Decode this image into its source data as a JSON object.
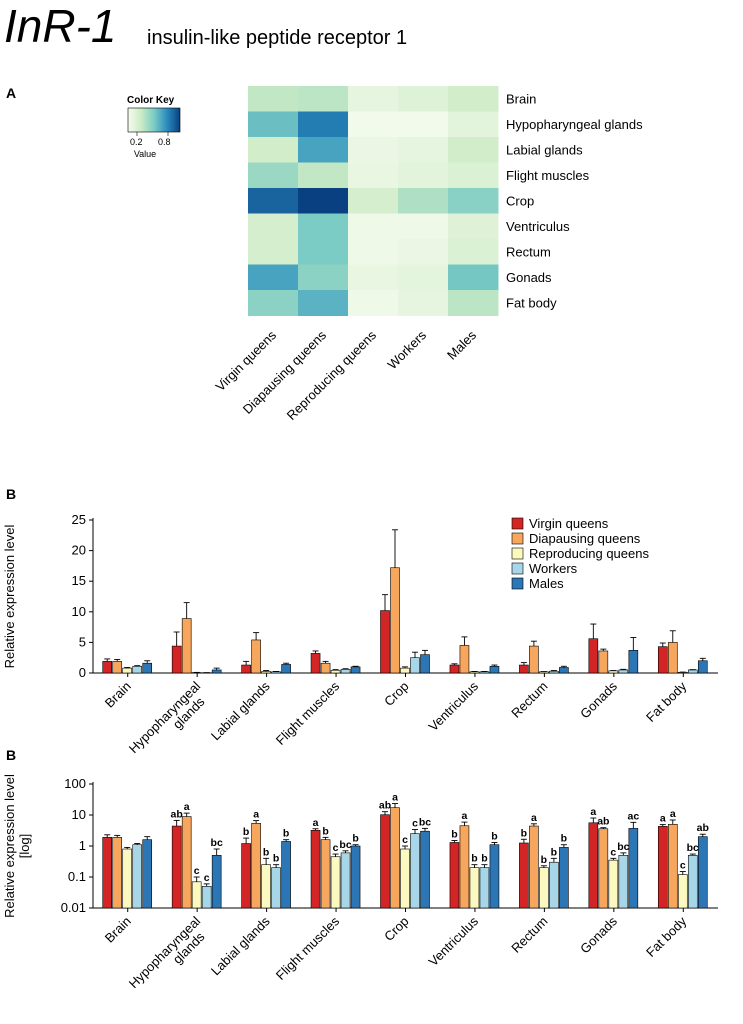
{
  "header": {
    "gene": "InR-1",
    "description": "insulin-like peptide receptor 1"
  },
  "panel_labels": {
    "a": "A",
    "b1": "B",
    "b2": "B"
  },
  "colors": {
    "Virgin queens": "#d42526",
    "Diapausing queens": "#f7a65e",
    "Reproducing queens": "#fbf8c0",
    "Workers": "#a6d6e8",
    "Males": "#2c76b6"
  },
  "chart_data": [
    {
      "type": "heatmap",
      "title": "",
      "color_key": {
        "title": "Color Key",
        "ticks": [
          "0.2",
          "0.8"
        ],
        "label": "Value",
        "range": [
          0,
          1
        ]
      },
      "columns": [
        "Virgin queens",
        "Diapausing queens",
        "Reproducing queens",
        "Workers",
        "Males"
      ],
      "rows": [
        "Brain",
        "Hypopharyngeal glands",
        "Labial glands",
        "Flight muscles",
        "Crop",
        "Ventriculus",
        "Rectum",
        "Gonads",
        "Fat body"
      ],
      "values": [
        [
          0.28,
          0.3,
          0.1,
          0.15,
          0.22
        ],
        [
          0.55,
          0.8,
          0.03,
          0.03,
          0.12
        ],
        [
          0.22,
          0.66,
          0.07,
          0.1,
          0.22
        ],
        [
          0.4,
          0.28,
          0.08,
          0.12,
          0.16
        ],
        [
          0.88,
          1.0,
          0.2,
          0.34,
          0.46
        ],
        [
          0.2,
          0.5,
          0.05,
          0.05,
          0.14
        ],
        [
          0.2,
          0.5,
          0.05,
          0.07,
          0.16
        ],
        [
          0.66,
          0.45,
          0.08,
          0.11,
          0.52
        ],
        [
          0.45,
          0.6,
          0.05,
          0.1,
          0.3
        ]
      ]
    },
    {
      "type": "bar",
      "ylabel": "Relative expression level",
      "xlabel": "",
      "ylim": [
        0,
        25
      ],
      "yticks": [
        0,
        5,
        10,
        15,
        20,
        25
      ],
      "categories": [
        "Brain",
        "Hypopharyngeal glands",
        "Labial glands",
        "Flight muscles",
        "Crop",
        "Ventriculus",
        "Rectum",
        "Gonads",
        "Fat body"
      ],
      "category_labels": [
        [
          "Brain"
        ],
        [
          "Hypopharyngeal",
          "glands"
        ],
        [
          "Labial glands"
        ],
        [
          "Flight muscles"
        ],
        [
          "Crop"
        ],
        [
          "Ventriculus"
        ],
        [
          "Rectum"
        ],
        [
          "Gonads"
        ],
        [
          "Fat body"
        ]
      ],
      "legend_position": "top-right",
      "series": [
        {
          "name": "Virgin queens",
          "values": [
            1.9,
            4.4,
            1.3,
            3.2,
            10.2,
            1.3,
            1.3,
            5.6,
            4.3
          ],
          "errors": [
            0.4,
            2.3,
            0.6,
            0.4,
            2.6,
            0.2,
            0.4,
            2.4,
            0.6
          ]
        },
        {
          "name": "Diapausing queens",
          "values": [
            1.9,
            8.9,
            5.4,
            1.6,
            17.2,
            4.5,
            4.4,
            3.6,
            5.0
          ],
          "errors": [
            0.3,
            2.6,
            1.2,
            0.3,
            6.2,
            1.4,
            0.8,
            0.3,
            1.9
          ]
        },
        {
          "name": "Reproducing queens",
          "values": [
            0.8,
            0.07,
            0.25,
            0.45,
            0.8,
            0.2,
            0.2,
            0.35,
            0.12
          ],
          "errors": [
            0.1,
            0.03,
            0.15,
            0.1,
            0.2,
            0.05,
            0.03,
            0.05,
            0.03
          ]
        },
        {
          "name": "Workers",
          "values": [
            1.1,
            0.05,
            0.2,
            0.6,
            2.5,
            0.2,
            0.3,
            0.5,
            0.5
          ],
          "errors": [
            0.1,
            0.01,
            0.05,
            0.1,
            0.9,
            0.05,
            0.1,
            0.1,
            0.05
          ]
        },
        {
          "name": "Males",
          "values": [
            1.6,
            0.5,
            1.4,
            1.0,
            3.0,
            1.1,
            0.9,
            3.7,
            2.0
          ],
          "errors": [
            0.4,
            0.3,
            0.2,
            0.1,
            0.7,
            0.2,
            0.2,
            2.1,
            0.4
          ]
        }
      ]
    },
    {
      "type": "bar",
      "scale": "log",
      "ylabel": "Relative expression level",
      "ylabel2": "[log]",
      "xlabel": "",
      "ylim": [
        0.01,
        100
      ],
      "yticks": [
        0.01,
        0.1,
        1,
        10,
        100
      ],
      "ytick_labels": [
        "0.01",
        "0.1",
        "1",
        "10",
        "100"
      ],
      "categories": [
        "Brain",
        "Hypopharyngeal glands",
        "Labial glands",
        "Flight muscles",
        "Crop",
        "Ventriculus",
        "Rectum",
        "Gonads",
        "Fat body"
      ],
      "category_labels": [
        [
          "Brain"
        ],
        [
          "Hypopharyngeal",
          "glands"
        ],
        [
          "Labial glands"
        ],
        [
          "Flight muscles"
        ],
        [
          "Crop"
        ],
        [
          "Ventriculus"
        ],
        [
          "Rectum"
        ],
        [
          "Gonads"
        ],
        [
          "Fat body"
        ]
      ],
      "series": [
        {
          "name": "Virgin queens",
          "values": [
            1.9,
            4.4,
            1.2,
            3.2,
            10.2,
            1.3,
            1.25,
            5.6,
            4.3
          ],
          "errors": [
            0.4,
            2.3,
            0.6,
            0.4,
            2.6,
            0.2,
            0.4,
            2.4,
            0.6
          ]
        },
        {
          "name": "Diapausing queens",
          "values": [
            1.9,
            8.9,
            5.4,
            1.6,
            17.2,
            4.5,
            4.4,
            3.6,
            5.0
          ],
          "errors": [
            0.3,
            2.6,
            1.2,
            0.3,
            6.2,
            1.4,
            0.8,
            0.3,
            1.9
          ]
        },
        {
          "name": "Reproducing queens",
          "values": [
            0.8,
            0.07,
            0.25,
            0.45,
            0.8,
            0.2,
            0.2,
            0.35,
            0.12
          ],
          "errors": [
            0.1,
            0.03,
            0.15,
            0.1,
            0.2,
            0.05,
            0.03,
            0.05,
            0.03
          ]
        },
        {
          "name": "Workers",
          "values": [
            1.1,
            0.05,
            0.2,
            0.6,
            2.5,
            0.2,
            0.3,
            0.5,
            0.5
          ],
          "errors": [
            0.1,
            0.01,
            0.05,
            0.1,
            0.9,
            0.05,
            0.1,
            0.1,
            0.05
          ]
        },
        {
          "name": "Males",
          "values": [
            1.6,
            0.5,
            1.4,
            1.0,
            3.0,
            1.1,
            0.9,
            3.7,
            2.0
          ],
          "errors": [
            0.4,
            0.3,
            0.2,
            0.1,
            0.7,
            0.2,
            0.2,
            2.1,
            0.4
          ]
        }
      ],
      "significance": [
        [
          "",
          "",
          "",
          "",
          ""
        ],
        [
          "ab",
          "a",
          "c",
          "c",
          "bc"
        ],
        [
          "b",
          "a",
          "b",
          "b",
          "b"
        ],
        [
          "a",
          "b",
          "c",
          "bc",
          "b"
        ],
        [
          "ab",
          "a",
          "c",
          "c",
          "bc"
        ],
        [
          "b",
          "a",
          "b",
          "b",
          "b"
        ],
        [
          "b",
          "a",
          "b",
          "b",
          "b"
        ],
        [
          "a",
          "ab",
          "c",
          "bc",
          "ac"
        ],
        [
          "a",
          "a",
          "c",
          "bc",
          "ab"
        ]
      ]
    }
  ]
}
